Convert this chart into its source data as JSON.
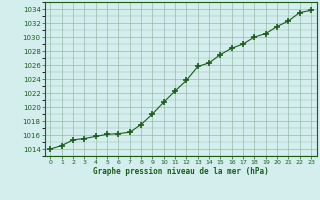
{
  "x": [
    0,
    1,
    2,
    3,
    4,
    5,
    6,
    7,
    8,
    9,
    10,
    11,
    12,
    13,
    14,
    15,
    16,
    17,
    18,
    19,
    20,
    21,
    22,
    23
  ],
  "y": [
    1014.0,
    1014.5,
    1015.3,
    1015.5,
    1015.8,
    1016.1,
    1016.2,
    1016.4,
    1017.5,
    1019.0,
    1020.7,
    1022.3,
    1023.8,
    1025.8,
    1026.3,
    1027.5,
    1028.4,
    1029.0,
    1030.0,
    1030.5,
    1031.5,
    1032.3,
    1033.5,
    1033.8
  ],
  "line_color": "#1a5c1a",
  "marker": "P",
  "marker_size": 3.0,
  "bg_color": "#d4eeee",
  "grid_color": "#99bbaa",
  "xlabel": "Graphe pression niveau de la mer (hPa)",
  "xlabel_color": "#1a5c1a",
  "tick_color": "#1a5c1a",
  "ylim": [
    1013,
    1035
  ],
  "xlim": [
    -0.5,
    23.5
  ],
  "yticks": [
    1014,
    1016,
    1018,
    1020,
    1022,
    1024,
    1026,
    1028,
    1030,
    1032,
    1034
  ],
  "xticks": [
    0,
    1,
    2,
    3,
    4,
    5,
    6,
    7,
    8,
    9,
    10,
    11,
    12,
    13,
    14,
    15,
    16,
    17,
    18,
    19,
    20,
    21,
    22,
    23
  ]
}
